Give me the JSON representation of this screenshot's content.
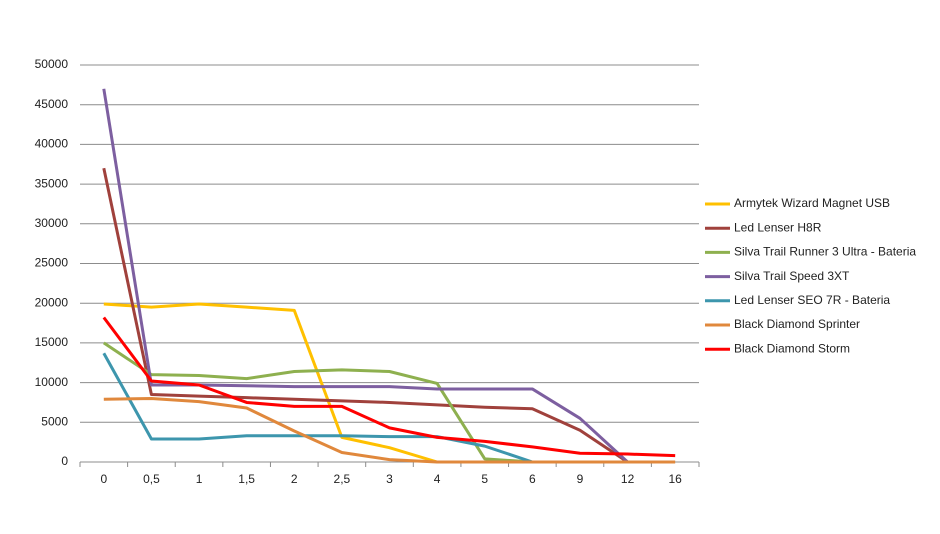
{
  "chart_data": {
    "type": "line",
    "categories": [
      "0",
      "0,5",
      "1",
      "1,5",
      "2",
      "2,5",
      "3",
      "4",
      "5",
      "6",
      "9",
      "12",
      "16"
    ],
    "ylim": [
      0,
      50000
    ],
    "yticks": [
      0,
      5000,
      10000,
      15000,
      20000,
      25000,
      30000,
      35000,
      40000,
      45000,
      50000
    ],
    "grid": true,
    "legend": "right",
    "series": [
      {
        "name": "Armytek Wizard Magnet USB",
        "color": "#ffc000",
        "values": [
          19900,
          19500,
          19900,
          19500,
          19100,
          3100,
          1800,
          0,
          null,
          null,
          null,
          null,
          null
        ]
      },
      {
        "name": "Led Lenser H8R",
        "color": "#a0413c",
        "values": [
          37000,
          8500,
          8300,
          8100,
          7900,
          7700,
          7500,
          7200,
          6900,
          6700,
          4000,
          0,
          null
        ]
      },
      {
        "name": "Silva Trail Runner 3 Ultra - Bateria",
        "color": "#8eb04f",
        "values": [
          15000,
          11000,
          10900,
          10500,
          11400,
          11600,
          11400,
          9900,
          400,
          0,
          null,
          null,
          null
        ]
      },
      {
        "name": "Silva Trail Speed 3XT",
        "color": "#7d5fa0",
        "values": [
          47000,
          9700,
          9700,
          9600,
          9500,
          9500,
          9500,
          9200,
          9200,
          9200,
          5500,
          0,
          null
        ]
      },
      {
        "name": "Led Lenser SEO 7R - Bateria",
        "color": "#3d96ad",
        "values": [
          13700,
          2900,
          2900,
          3300,
          3300,
          3300,
          3200,
          3200,
          2000,
          0,
          null,
          null,
          null
        ]
      },
      {
        "name": "Black Diamond Sprinter",
        "color": "#e0883c",
        "values": [
          7900,
          8000,
          7600,
          6800,
          3900,
          1200,
          300,
          0,
          0,
          0,
          0,
          0,
          0
        ]
      },
      {
        "name": "Black Diamond Storm",
        "color": "#ff0000",
        "values": [
          18200,
          10200,
          9700,
          7500,
          7000,
          7000,
          4300,
          3100,
          2600,
          1900,
          1100,
          1000,
          800
        ]
      }
    ]
  }
}
